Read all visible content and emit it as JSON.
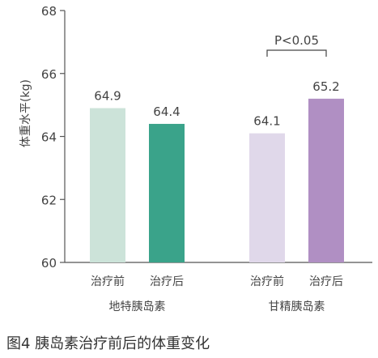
{
  "chart_data": {
    "type": "bar",
    "ylabel": "体重水平(kg)",
    "ylim": [
      60,
      68
    ],
    "yticks": [
      60,
      62,
      64,
      66,
      68
    ],
    "groups": [
      {
        "name": "地特胰岛素",
        "bars": [
          {
            "label": "治疗前",
            "value": 64.9,
            "value_label": "64.9",
            "color": "#cce3d9"
          },
          {
            "label": "治疗后",
            "value": 64.4,
            "value_label": "64.4",
            "color": "#3aa38a"
          }
        ]
      },
      {
        "name": "甘精胰岛素",
        "bars": [
          {
            "label": "治疗前",
            "value": 64.1,
            "value_label": "64.1",
            "color": "#e0d8ea"
          },
          {
            "label": "治疗后",
            "value": 65.2,
            "value_label": "65.2",
            "color": "#b08fc3"
          }
        ]
      }
    ],
    "annotations": [
      {
        "text": "P<0.05",
        "group": 1
      }
    ],
    "grid": false,
    "legend": "none"
  },
  "caption": "图4 胰岛素治疗前后的体重变化"
}
